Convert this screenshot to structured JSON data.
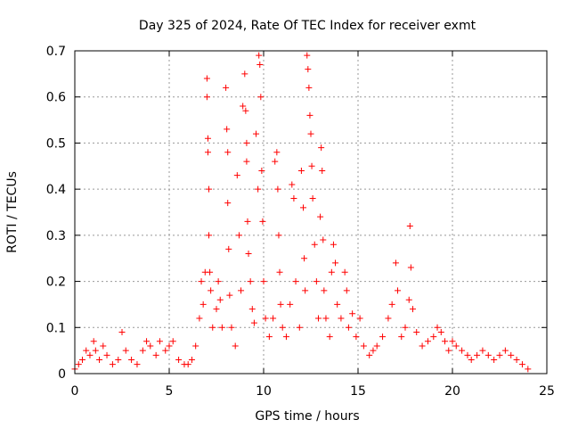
{
  "chart_data": {
    "type": "scatter",
    "title": "Day 325 of 2024, Rate Of TEC Index for receiver exmt",
    "xlabel": "GPS time / hours",
    "ylabel": "ROTI / TECUs",
    "xlim": [
      0,
      25
    ],
    "ylim": [
      0,
      0.7
    ],
    "x_ticks": [
      "0",
      "5",
      "10",
      "15",
      "20",
      "25"
    ],
    "y_ticks": [
      "0",
      "0.1",
      "0.2",
      "0.3",
      "0.4",
      "0.5",
      "0.6",
      "0.7"
    ],
    "grid": true,
    "marker": "+",
    "color": "#ff0000",
    "series": [
      {
        "points": [
          [
            0.0,
            0.01
          ],
          [
            0.2,
            0.02
          ],
          [
            0.4,
            0.03
          ],
          [
            0.6,
            0.05
          ],
          [
            0.8,
            0.04
          ],
          [
            1.0,
            0.07
          ],
          [
            1.1,
            0.05
          ],
          [
            1.3,
            0.03
          ],
          [
            1.5,
            0.06
          ],
          [
            1.7,
            0.04
          ],
          [
            2.0,
            0.02
          ],
          [
            2.3,
            0.03
          ],
          [
            2.5,
            0.09
          ],
          [
            2.7,
            0.05
          ],
          [
            3.0,
            0.03
          ],
          [
            3.3,
            0.02
          ],
          [
            3.6,
            0.05
          ],
          [
            3.8,
            0.07
          ],
          [
            4.0,
            0.06
          ],
          [
            4.3,
            0.04
          ],
          [
            4.5,
            0.07
          ],
          [
            4.8,
            0.05
          ],
          [
            5.0,
            0.06
          ],
          [
            5.2,
            0.07
          ],
          [
            5.5,
            0.03
          ],
          [
            5.8,
            0.02
          ],
          [
            6.0,
            0.02
          ],
          [
            6.2,
            0.03
          ],
          [
            6.4,
            0.06
          ],
          [
            6.6,
            0.12
          ],
          [
            6.7,
            0.2
          ],
          [
            6.8,
            0.15
          ],
          [
            6.9,
            0.22
          ],
          [
            7.0,
            0.64
          ],
          [
            7.0,
            0.6
          ],
          [
            7.05,
            0.51
          ],
          [
            7.05,
            0.48
          ],
          [
            7.1,
            0.4
          ],
          [
            7.1,
            0.3
          ],
          [
            7.15,
            0.22
          ],
          [
            7.2,
            0.18
          ],
          [
            7.3,
            0.1
          ],
          [
            7.5,
            0.14
          ],
          [
            7.6,
            0.2
          ],
          [
            7.7,
            0.16
          ],
          [
            7.8,
            0.1
          ],
          [
            8.0,
            0.62
          ],
          [
            8.05,
            0.53
          ],
          [
            8.1,
            0.48
          ],
          [
            8.1,
            0.37
          ],
          [
            8.15,
            0.27
          ],
          [
            8.2,
            0.17
          ],
          [
            8.3,
            0.1
          ],
          [
            8.5,
            0.06
          ],
          [
            8.6,
            0.43
          ],
          [
            8.7,
            0.3
          ],
          [
            8.8,
            0.18
          ],
          [
            8.9,
            0.58
          ],
          [
            9.0,
            0.65
          ],
          [
            9.05,
            0.57
          ],
          [
            9.1,
            0.5
          ],
          [
            9.1,
            0.46
          ],
          [
            9.15,
            0.33
          ],
          [
            9.2,
            0.26
          ],
          [
            9.3,
            0.2
          ],
          [
            9.4,
            0.14
          ],
          [
            9.5,
            0.11
          ],
          [
            9.6,
            0.52
          ],
          [
            9.7,
            0.4
          ],
          [
            9.75,
            0.69
          ],
          [
            9.8,
            0.67
          ],
          [
            9.85,
            0.6
          ],
          [
            9.9,
            0.44
          ],
          [
            9.95,
            0.33
          ],
          [
            10.0,
            0.2
          ],
          [
            10.1,
            0.12
          ],
          [
            10.3,
            0.08
          ],
          [
            10.5,
            0.12
          ],
          [
            10.6,
            0.46
          ],
          [
            10.7,
            0.48
          ],
          [
            10.75,
            0.4
          ],
          [
            10.8,
            0.3
          ],
          [
            10.85,
            0.22
          ],
          [
            10.9,
            0.15
          ],
          [
            11.0,
            0.1
          ],
          [
            11.2,
            0.08
          ],
          [
            11.4,
            0.15
          ],
          [
            11.5,
            0.41
          ],
          [
            11.6,
            0.38
          ],
          [
            11.7,
            0.2
          ],
          [
            11.9,
            0.1
          ],
          [
            12.0,
            0.44
          ],
          [
            12.1,
            0.36
          ],
          [
            12.15,
            0.25
          ],
          [
            12.2,
            0.18
          ],
          [
            12.3,
            0.69
          ],
          [
            12.35,
            0.66
          ],
          [
            12.4,
            0.62
          ],
          [
            12.45,
            0.56
          ],
          [
            12.5,
            0.52
          ],
          [
            12.55,
            0.45
          ],
          [
            12.6,
            0.38
          ],
          [
            12.7,
            0.28
          ],
          [
            12.8,
            0.2
          ],
          [
            12.9,
            0.12
          ],
          [
            13.0,
            0.34
          ],
          [
            13.05,
            0.49
          ],
          [
            13.1,
            0.44
          ],
          [
            13.15,
            0.29
          ],
          [
            13.2,
            0.18
          ],
          [
            13.3,
            0.12
          ],
          [
            13.5,
            0.08
          ],
          [
            13.6,
            0.22
          ],
          [
            13.7,
            0.28
          ],
          [
            13.8,
            0.24
          ],
          [
            13.9,
            0.15
          ],
          [
            14.1,
            0.12
          ],
          [
            14.3,
            0.22
          ],
          [
            14.4,
            0.18
          ],
          [
            14.5,
            0.1
          ],
          [
            14.7,
            0.13
          ],
          [
            14.9,
            0.08
          ],
          [
            15.1,
            0.12
          ],
          [
            15.3,
            0.06
          ],
          [
            15.6,
            0.04
          ],
          [
            15.8,
            0.05
          ],
          [
            16.0,
            0.06
          ],
          [
            16.3,
            0.08
          ],
          [
            16.6,
            0.12
          ],
          [
            16.8,
            0.15
          ],
          [
            17.0,
            0.24
          ],
          [
            17.1,
            0.18
          ],
          [
            17.3,
            0.08
          ],
          [
            17.5,
            0.1
          ],
          [
            17.7,
            0.16
          ],
          [
            17.75,
            0.32
          ],
          [
            17.8,
            0.23
          ],
          [
            17.9,
            0.14
          ],
          [
            18.1,
            0.09
          ],
          [
            18.4,
            0.06
          ],
          [
            18.7,
            0.07
          ],
          [
            19.0,
            0.08
          ],
          [
            19.2,
            0.1
          ],
          [
            19.4,
            0.09
          ],
          [
            19.6,
            0.07
          ],
          [
            19.8,
            0.05
          ],
          [
            20.0,
            0.07
          ],
          [
            20.2,
            0.06
          ],
          [
            20.5,
            0.05
          ],
          [
            20.8,
            0.04
          ],
          [
            21.0,
            0.03
          ],
          [
            21.3,
            0.04
          ],
          [
            21.6,
            0.05
          ],
          [
            21.9,
            0.04
          ],
          [
            22.2,
            0.03
          ],
          [
            22.5,
            0.04
          ],
          [
            22.8,
            0.05
          ],
          [
            23.1,
            0.04
          ],
          [
            23.4,
            0.03
          ],
          [
            23.7,
            0.02
          ],
          [
            24.0,
            0.01
          ]
        ]
      }
    ]
  }
}
